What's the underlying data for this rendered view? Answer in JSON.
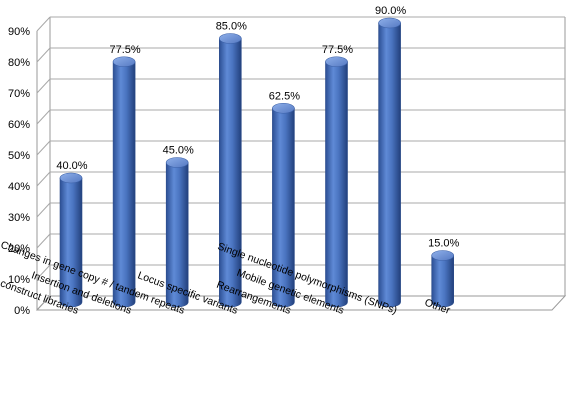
{
  "chart_data": {
    "type": "bar",
    "style": "3d-cylinder",
    "bar_color": "#4a74c0",
    "categories": [
      "Size of the inserts / fragments used to construct libraries",
      "Insertion and deletions",
      "Changes in gene copy # / tandem repeats",
      "Locus specific variants",
      "Rearrangements",
      "Mobile genetic elements",
      "Single nucleotide polymorphisms (SNPs)",
      "Other"
    ],
    "values": [
      40.0,
      77.5,
      45.0,
      85.0,
      62.5,
      77.5,
      90.0,
      15.0
    ],
    "data_labels": [
      "40.0%",
      "77.5%",
      "45.0%",
      "85.0%",
      "62.5%",
      "77.5%",
      "90.0%",
      "15.0%"
    ],
    "yticks": [
      "0%",
      "10%",
      "20%",
      "30%",
      "40%",
      "50%",
      "60%",
      "70%",
      "80%",
      "90%"
    ],
    "ylim": [
      0,
      90
    ],
    "grid": true,
    "legend": "none"
  }
}
